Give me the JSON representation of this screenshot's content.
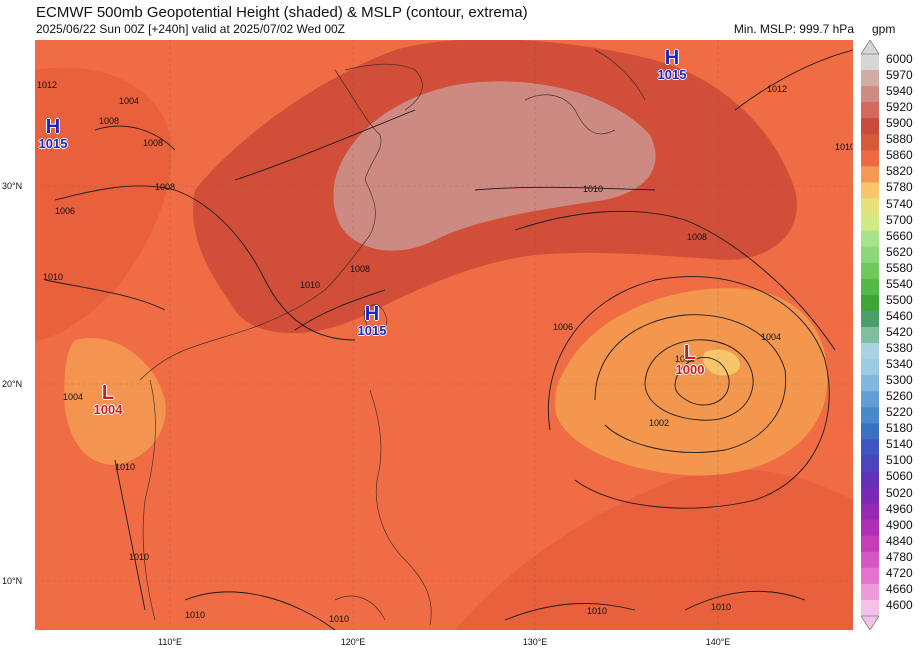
{
  "header": {
    "title": "ECMWF 500mb Geopotential Height (shaded) & MSLP (contour, extrema)",
    "subtitle": "2025/06/22 Sun 00Z [+240h] valid at 2025/07/02 Wed 00Z",
    "min_mslp": "Min. MSLP: 999.7 hPa",
    "units": "gpm"
  },
  "axes": {
    "lat_labels": [
      "30°N",
      "20°N",
      "10°N"
    ],
    "lon_labels": [
      "110°E",
      "120°E",
      "130°E",
      "140°E"
    ]
  },
  "colorbar": {
    "labels": [
      "6000",
      "5970",
      "5940",
      "5920",
      "5900",
      "5880",
      "5860",
      "5820",
      "5780",
      "5740",
      "5700",
      "5660",
      "5620",
      "5580",
      "5540",
      "5500",
      "5460",
      "5420",
      "5380",
      "5340",
      "5300",
      "5260",
      "5220",
      "5180",
      "5140",
      "5100",
      "5060",
      "5020",
      "4960",
      "4900",
      "4840",
      "4780",
      "4720",
      "4660",
      "4600"
    ],
    "colors": [
      "#d6d6d6",
      "#d2aaa6",
      "#cf8a82",
      "#d2695c",
      "#c84c3c",
      "#d65a3a",
      "#ee6a42",
      "#f59a55",
      "#f7c56a",
      "#e6e27a",
      "#d2ea86",
      "#a8e28a",
      "#8cd878",
      "#6ec85e",
      "#56b848",
      "#3ea638",
      "#4c9e6a",
      "#7fbe9e",
      "#aad2e2",
      "#9ccae0",
      "#82b6dc",
      "#629ed4",
      "#4a88cc",
      "#3a70c4",
      "#3e56c0",
      "#4c44bc",
      "#6432b8",
      "#7c28b6",
      "#9628b6",
      "#ae2eb4",
      "#c43eb8",
      "#d656c2",
      "#e276ce",
      "#ec9ad8",
      "#f4c2e6"
    ]
  },
  "pressure_systems": [
    {
      "type": "H",
      "value": "1015"
    },
    {
      "type": "H",
      "value": "1015"
    },
    {
      "type": "H",
      "value": "1015"
    },
    {
      "type": "L",
      "value": "1004"
    },
    {
      "type": "L",
      "value": "1000"
    }
  ],
  "contour_labels": [
    "1012",
    "1004",
    "1008",
    "1008",
    "1008",
    "1006",
    "1010",
    "1010",
    "1010",
    "1008",
    "1012",
    "1010",
    "1008",
    "1006",
    "1004",
    "1000",
    "1002",
    "1004",
    "1010",
    "1010",
    "1010",
    "1010",
    "1010",
    "1010"
  ]
}
